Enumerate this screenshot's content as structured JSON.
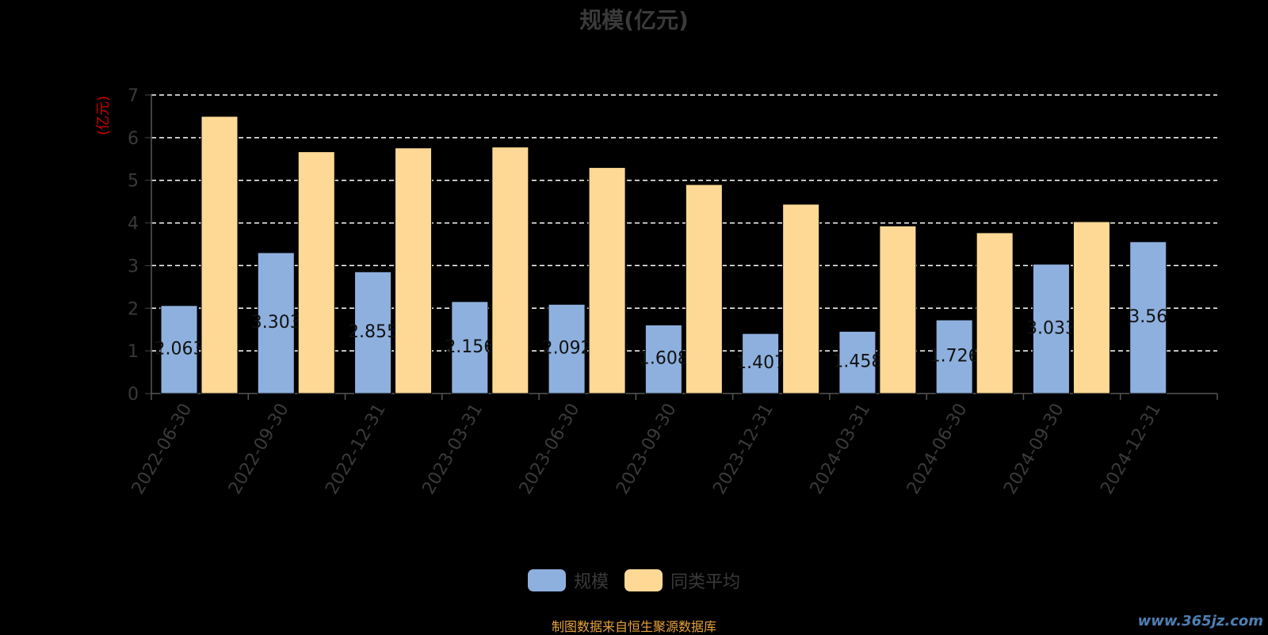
{
  "chart_data": {
    "type": "bar",
    "title": "规模(亿元)",
    "ylabel": "(亿元)",
    "ylim": [
      0,
      7
    ],
    "yticks": [
      0,
      1,
      2,
      3,
      4,
      5,
      6,
      7
    ],
    "grid": true,
    "legend_position": "bottom",
    "categories": [
      "2022-06-30",
      "2022-09-30",
      "2022-12-31",
      "2023-03-31",
      "2023-06-30",
      "2023-09-30",
      "2023-12-31",
      "2024-03-31",
      "2024-06-30",
      "2024-09-30",
      "2024-12-31"
    ],
    "series": [
      {
        "name": "规模",
        "color": "#8eb0de",
        "values": [
          2.063,
          3.303,
          2.855,
          2.156,
          2.092,
          1.608,
          1.407,
          1.458,
          1.726,
          3.033,
          3.56
        ],
        "labels": [
          "2.063",
          "3.303",
          "2.855",
          "2.156",
          "2.092",
          "1.608",
          "1.407",
          "1.458",
          "1.726",
          "3.033",
          "3.56"
        ]
      },
      {
        "name": "同类平均",
        "color": "#fed996",
        "values": [
          6.5,
          5.67,
          5.76,
          5.78,
          5.3,
          4.9,
          4.44,
          3.93,
          3.77,
          4.03,
          null
        ]
      }
    ]
  },
  "footer": {
    "source": "制图数据来自恒生聚源数据库",
    "watermark": "www.365jz.com"
  }
}
